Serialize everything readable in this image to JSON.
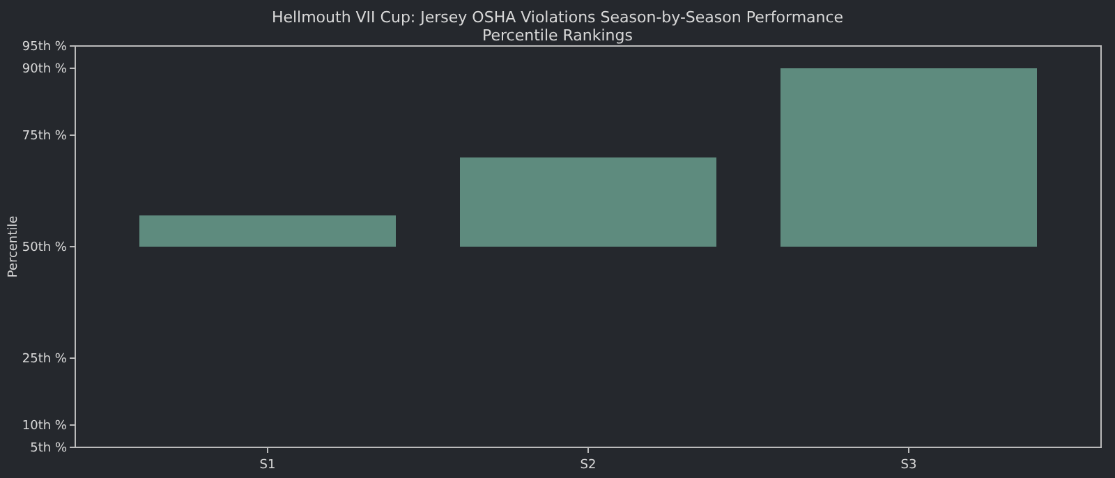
{
  "chart_data": {
    "type": "bar",
    "title": "Hellmouth VII Cup: Jersey OSHA Violations Season-by-Season Performance",
    "subtitle": "Percentile Rankings",
    "ylabel": "Percentile",
    "categories": [
      "S1",
      "S2",
      "S3"
    ],
    "base": [
      50,
      50,
      50
    ],
    "values": [
      7,
      20,
      40
    ],
    "color": "#5e8b7e",
    "ylim": [
      5,
      95
    ],
    "yticks": [
      {
        "value": 5,
        "label": "5th %"
      },
      {
        "value": 10,
        "label": "10th %"
      },
      {
        "value": 25,
        "label": "25th %"
      },
      {
        "value": 50,
        "label": "50th %"
      },
      {
        "value": 75,
        "label": "75th %"
      },
      {
        "value": 90,
        "label": "90th %"
      },
      {
        "value": 95,
        "label": "95th %"
      }
    ]
  }
}
